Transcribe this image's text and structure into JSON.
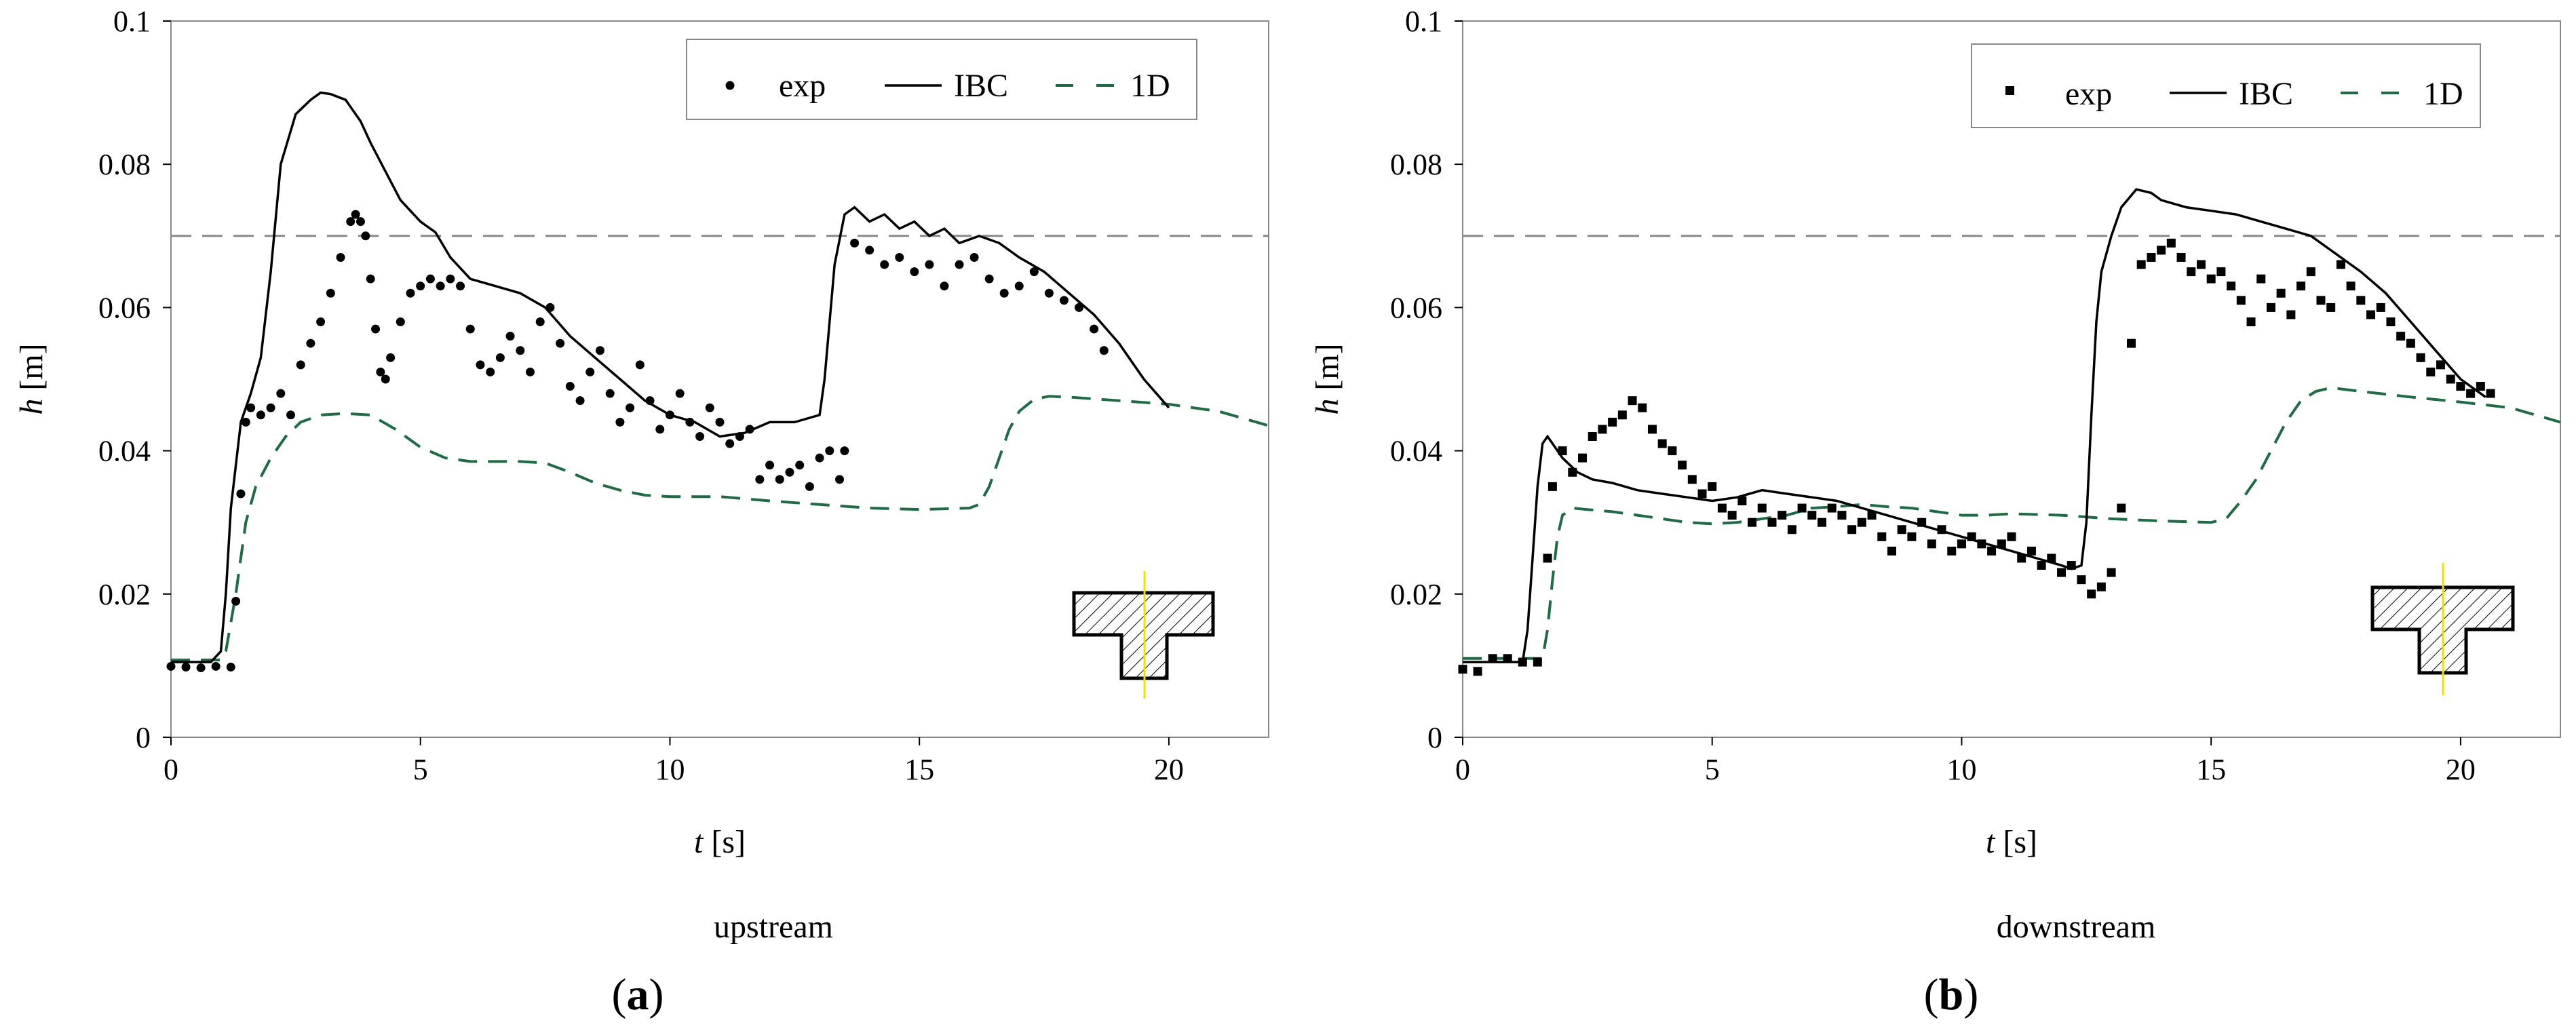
{
  "chart_data": [
    {
      "type": "line",
      "panel_label": "(a)",
      "caption": "upstream",
      "xlabel": {
        "symbol": "t",
        "unit": "[s]"
      },
      "ylabel": {
        "symbol": "h",
        "unit": "[m]"
      },
      "xlim": [
        0,
        22
      ],
      "ylim": [
        0,
        0.1
      ],
      "xticks": [
        "0",
        "5",
        "10",
        "15",
        "20"
      ],
      "yticks": [
        "0",
        "0.02",
        "0.04",
        "0.06",
        "0.08",
        "0.1"
      ],
      "grid": false,
      "legend_position": "top-right",
      "reference_line": {
        "y": 0.07,
        "style": "dashed-gray"
      },
      "series": [
        {
          "name": "exp",
          "style": "markers",
          "color": "#000000",
          "x": [
            0,
            0.3,
            0.6,
            0.9,
            1.2,
            1.3,
            1.4,
            1.5,
            1.6,
            1.8,
            2.0,
            2.2,
            2.4,
            2.6,
            2.8,
            3.0,
            3.2,
            3.4,
            3.6,
            3.7,
            3.8,
            3.9,
            4.0,
            4.1,
            4.2,
            4.3,
            4.4,
            4.6,
            4.8,
            5.0,
            5.2,
            5.4,
            5.6,
            5.8,
            6.0,
            6.2,
            6.4,
            6.6,
            6.8,
            7.0,
            7.2,
            7.4,
            7.6,
            7.8,
            8.0,
            8.2,
            8.4,
            8.6,
            8.8,
            9.0,
            9.2,
            9.4,
            9.6,
            9.8,
            10.0,
            10.2,
            10.4,
            10.6,
            10.8,
            11.0,
            11.2,
            11.4,
            11.6,
            11.8,
            12.0,
            12.2,
            12.4,
            12.6,
            12.8,
            13.0,
            13.2,
            13.4,
            13.5,
            13.7,
            14.0,
            14.3,
            14.6,
            14.9,
            15.2,
            15.5,
            15.8,
            16.1,
            16.4,
            16.7,
            17.0,
            17.3,
            17.6,
            17.9,
            18.2,
            18.5,
            18.7
          ],
          "y": [
            0.0099,
            0.0098,
            0.0097,
            0.0099,
            0.0098,
            0.019,
            0.034,
            0.044,
            0.046,
            0.045,
            0.046,
            0.048,
            0.045,
            0.052,
            0.055,
            0.058,
            0.062,
            0.067,
            0.072,
            0.073,
            0.072,
            0.07,
            0.064,
            0.057,
            0.051,
            0.05,
            0.053,
            0.058,
            0.062,
            0.063,
            0.064,
            0.063,
            0.064,
            0.063,
            0.057,
            0.052,
            0.051,
            0.053,
            0.056,
            0.054,
            0.051,
            0.058,
            0.06,
            0.055,
            0.049,
            0.047,
            0.051,
            0.054,
            0.048,
            0.044,
            0.046,
            0.052,
            0.047,
            0.043,
            0.045,
            0.048,
            0.044,
            0.042,
            0.046,
            0.044,
            0.041,
            0.042,
            0.043,
            0.036,
            0.038,
            0.036,
            0.037,
            0.038,
            0.035,
            0.039,
            0.04,
            0.036,
            0.04,
            0.069,
            0.068,
            0.066,
            0.067,
            0.065,
            0.066,
            0.063,
            0.066,
            0.067,
            0.064,
            0.062,
            0.063,
            0.065,
            0.062,
            0.061,
            0.06,
            0.057,
            0.054
          ]
        },
        {
          "name": "IBC",
          "style": "solid",
          "color": "#000000",
          "x": [
            0,
            0.8,
            1.0,
            1.1,
            1.2,
            1.4,
            1.6,
            1.8,
            2.0,
            2.2,
            2.5,
            2.8,
            3.0,
            3.2,
            3.5,
            3.8,
            4.0,
            4.3,
            4.6,
            5.0,
            5.3,
            5.6,
            6.0,
            6.5,
            7.0,
            7.5,
            8.0,
            8.5,
            9.0,
            9.5,
            10.0,
            10.5,
            11.0,
            11.5,
            12.0,
            12.5,
            13.0,
            13.1,
            13.2,
            13.3,
            13.5,
            13.7,
            14.0,
            14.3,
            14.6,
            14.9,
            15.2,
            15.5,
            15.8,
            16.2,
            16.6,
            17.0,
            17.5,
            18.0,
            18.5,
            19.0,
            19.5,
            20.0
          ],
          "y": [
            0.0105,
            0.0105,
            0.012,
            0.02,
            0.032,
            0.044,
            0.048,
            0.053,
            0.065,
            0.08,
            0.087,
            0.089,
            0.09,
            0.0898,
            0.089,
            0.086,
            0.083,
            0.079,
            0.075,
            0.072,
            0.0705,
            0.067,
            0.064,
            0.063,
            0.062,
            0.06,
            0.056,
            0.053,
            0.05,
            0.047,
            0.045,
            0.044,
            0.042,
            0.0425,
            0.044,
            0.044,
            0.045,
            0.05,
            0.058,
            0.066,
            0.073,
            0.074,
            0.072,
            0.073,
            0.071,
            0.072,
            0.07,
            0.071,
            0.069,
            0.07,
            0.069,
            0.067,
            0.065,
            0.062,
            0.059,
            0.055,
            0.05,
            0.046
          ]
        },
        {
          "name": "1D",
          "style": "dashed",
          "color": "#1f6b45",
          "x": [
            0,
            1.0,
            1.1,
            1.3,
            1.5,
            1.7,
            2.0,
            2.3,
            2.6,
            3.0,
            3.5,
            4.0,
            4.5,
            5.0,
            5.5,
            6.0,
            6.5,
            7.0,
            7.5,
            8.0,
            8.5,
            9.0,
            9.5,
            10.0,
            11.0,
            12.0,
            13.0,
            14.0,
            15.0,
            16.0,
            16.2,
            16.4,
            16.6,
            16.8,
            17.0,
            17.3,
            17.6,
            18.0,
            19.0,
            20.0,
            21.0,
            22.0
          ],
          "y": [
            0.0108,
            0.0108,
            0.012,
            0.02,
            0.03,
            0.035,
            0.039,
            0.042,
            0.044,
            0.045,
            0.0452,
            0.045,
            0.043,
            0.0405,
            0.039,
            0.0385,
            0.0385,
            0.0385,
            0.0383,
            0.037,
            0.0355,
            0.0345,
            0.0338,
            0.0336,
            0.0336,
            0.033,
            0.0325,
            0.032,
            0.0318,
            0.032,
            0.0325,
            0.035,
            0.039,
            0.043,
            0.0455,
            0.0472,
            0.0476,
            0.0475,
            0.047,
            0.0465,
            0.0455,
            0.0435
          ]
        }
      ]
    },
    {
      "type": "line",
      "panel_label": "(b)",
      "caption": "downstream",
      "xlabel": {
        "symbol": "t",
        "unit": "[s]"
      },
      "ylabel": {
        "symbol": "h",
        "unit": "[m]"
      },
      "xlim": [
        0,
        22
      ],
      "ylim": [
        0,
        0.1
      ],
      "xticks": [
        "0",
        "5",
        "10",
        "15",
        "20"
      ],
      "yticks": [
        "0",
        "0.02",
        "0.04",
        "0.06",
        "0.08",
        "0.1"
      ],
      "grid": false,
      "legend_position": "top-right",
      "reference_line": {
        "y": 0.07,
        "style": "dashed-gray"
      },
      "series": [
        {
          "name": "exp",
          "style": "markers",
          "color": "#000000",
          "x": [
            0,
            0.3,
            0.6,
            0.9,
            1.2,
            1.5,
            1.7,
            1.8,
            2.0,
            2.2,
            2.4,
            2.6,
            2.8,
            3.0,
            3.2,
            3.4,
            3.6,
            3.8,
            4.0,
            4.2,
            4.4,
            4.6,
            4.8,
            5.0,
            5.2,
            5.4,
            5.6,
            5.8,
            6.0,
            6.2,
            6.4,
            6.6,
            6.8,
            7.0,
            7.2,
            7.4,
            7.6,
            7.8,
            8.0,
            8.2,
            8.4,
            8.6,
            8.8,
            9.0,
            9.2,
            9.4,
            9.6,
            9.8,
            10.0,
            10.2,
            10.4,
            10.6,
            10.8,
            11.0,
            11.2,
            11.4,
            11.6,
            11.8,
            12.0,
            12.2,
            12.4,
            12.6,
            12.8,
            13.0,
            13.2,
            13.4,
            13.6,
            13.8,
            14.0,
            14.2,
            14.4,
            14.6,
            14.8,
            15.0,
            15.2,
            15.4,
            15.6,
            15.8,
            16.0,
            16.2,
            16.4,
            16.6,
            16.8,
            17.0,
            17.2,
            17.4,
            17.6,
            17.8,
            18.0,
            18.2,
            18.4,
            18.6,
            18.8,
            19.0,
            19.2,
            19.4,
            19.6,
            19.8,
            20.0,
            20.2,
            20.4,
            20.6
          ],
          "y": [
            0.0095,
            0.0092,
            0.011,
            0.011,
            0.0105,
            0.0105,
            0.025,
            0.035,
            0.04,
            0.037,
            0.039,
            0.042,
            0.043,
            0.044,
            0.045,
            0.047,
            0.046,
            0.043,
            0.041,
            0.04,
            0.038,
            0.036,
            0.034,
            0.035,
            0.032,
            0.031,
            0.033,
            0.03,
            0.032,
            0.03,
            0.031,
            0.029,
            0.032,
            0.031,
            0.03,
            0.032,
            0.031,
            0.029,
            0.03,
            0.031,
            0.028,
            0.026,
            0.029,
            0.028,
            0.03,
            0.027,
            0.029,
            0.026,
            0.027,
            0.028,
            0.027,
            0.026,
            0.027,
            0.028,
            0.025,
            0.026,
            0.024,
            0.025,
            0.023,
            0.024,
            0.022,
            0.02,
            0.021,
            0.023,
            0.032,
            0.055,
            0.066,
            0.067,
            0.068,
            0.069,
            0.067,
            0.065,
            0.066,
            0.064,
            0.065,
            0.063,
            0.061,
            0.058,
            0.064,
            0.06,
            0.062,
            0.059,
            0.063,
            0.065,
            0.061,
            0.06,
            0.066,
            0.063,
            0.061,
            0.059,
            0.06,
            0.058,
            0.056,
            0.055,
            0.053,
            0.051,
            0.052,
            0.05,
            0.049,
            0.048,
            0.049,
            0.048
          ]
        },
        {
          "name": "IBC",
          "style": "solid",
          "color": "#000000",
          "x": [
            0,
            1.2,
            1.3,
            1.4,
            1.5,
            1.6,
            1.7,
            1.8,
            2.0,
            2.3,
            2.6,
            3.0,
            3.5,
            4.0,
            4.5,
            5.0,
            5.5,
            6.0,
            6.5,
            7.0,
            7.5,
            8.0,
            8.5,
            9.0,
            9.5,
            10.0,
            10.5,
            11.0,
            11.5,
            12.0,
            12.2,
            12.4,
            12.5,
            12.6,
            12.7,
            12.8,
            13.0,
            13.2,
            13.5,
            13.8,
            14.0,
            14.5,
            15.0,
            15.5,
            16.0,
            16.5,
            17.0,
            17.5,
            18.0,
            18.5,
            19.0,
            19.5,
            20.0,
            20.5
          ],
          "y": [
            0.0105,
            0.0105,
            0.015,
            0.025,
            0.035,
            0.041,
            0.042,
            0.041,
            0.039,
            0.037,
            0.036,
            0.0355,
            0.0345,
            0.034,
            0.0335,
            0.033,
            0.0335,
            0.0345,
            0.034,
            0.0335,
            0.033,
            0.032,
            0.031,
            0.03,
            0.029,
            0.028,
            0.027,
            0.026,
            0.025,
            0.024,
            0.0235,
            0.024,
            0.03,
            0.045,
            0.058,
            0.065,
            0.07,
            0.074,
            0.0765,
            0.076,
            0.075,
            0.074,
            0.0735,
            0.073,
            0.072,
            0.071,
            0.07,
            0.0675,
            0.065,
            0.062,
            0.058,
            0.054,
            0.05,
            0.0475
          ]
        },
        {
          "name": "1D",
          "style": "dashed",
          "color": "#1f6b45",
          "x": [
            0,
            1.6,
            1.7,
            1.8,
            1.9,
            2.0,
            2.2,
            2.5,
            3.0,
            3.5,
            4.0,
            4.5,
            5.0,
            5.5,
            6.0,
            6.5,
            7.0,
            7.5,
            8.0,
            8.5,
            9.0,
            9.5,
            10.0,
            10.5,
            11.0,
            12.0,
            13.0,
            14.0,
            15.0,
            15.3,
            15.6,
            15.9,
            16.2,
            16.5,
            16.8,
            17.1,
            17.4,
            18.0,
            19.0,
            20.0,
            21.0,
            22.0
          ],
          "y": [
            0.011,
            0.011,
            0.015,
            0.022,
            0.028,
            0.031,
            0.032,
            0.0318,
            0.0315,
            0.031,
            0.0305,
            0.03,
            0.0298,
            0.03,
            0.0305,
            0.031,
            0.032,
            0.0322,
            0.0325,
            0.0322,
            0.032,
            0.0315,
            0.031,
            0.031,
            0.0312,
            0.031,
            0.0305,
            0.0302,
            0.03,
            0.0305,
            0.033,
            0.036,
            0.04,
            0.044,
            0.047,
            0.0483,
            0.0488,
            0.0483,
            0.0475,
            0.0468,
            0.046,
            0.044
          ]
        }
      ]
    }
  ],
  "colors": {
    "axis": "#000000",
    "reference_line": "#888888",
    "model_1d": "#1f6b45",
    "section_fill": "#ffffff",
    "section_centerline": "#f0e000"
  },
  "inset_icon": "t-shaped-cross-section-icon"
}
